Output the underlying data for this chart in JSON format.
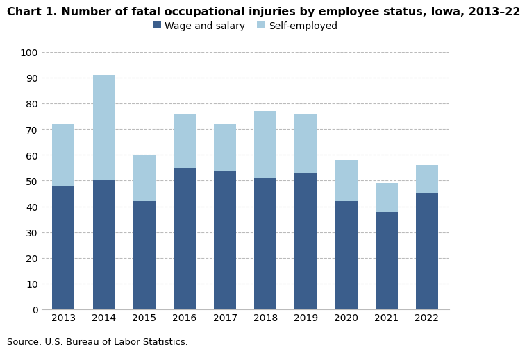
{
  "title": "Chart 1. Number of fatal occupational injuries by employee status, Iowa, 2013–22",
  "years": [
    2013,
    2014,
    2015,
    2016,
    2017,
    2018,
    2019,
    2020,
    2021,
    2022
  ],
  "wage_and_salary": [
    48,
    50,
    42,
    55,
    54,
    51,
    53,
    42,
    38,
    45
  ],
  "self_employed": [
    24,
    41,
    18,
    21,
    18,
    26,
    23,
    16,
    11,
    11
  ],
  "wage_color": "#3B5E8C",
  "self_color": "#A8CCDF",
  "ylim": [
    0,
    100
  ],
  "yticks": [
    0,
    10,
    20,
    30,
    40,
    50,
    60,
    70,
    80,
    90,
    100
  ],
  "legend_labels": [
    "Wage and salary",
    "Self-employed"
  ],
  "source_text": "Source: U.S. Bureau of Labor Statistics.",
  "title_fontsize": 11.5,
  "axis_fontsize": 10,
  "legend_fontsize": 10,
  "source_fontsize": 9.5,
  "bar_width": 0.55
}
